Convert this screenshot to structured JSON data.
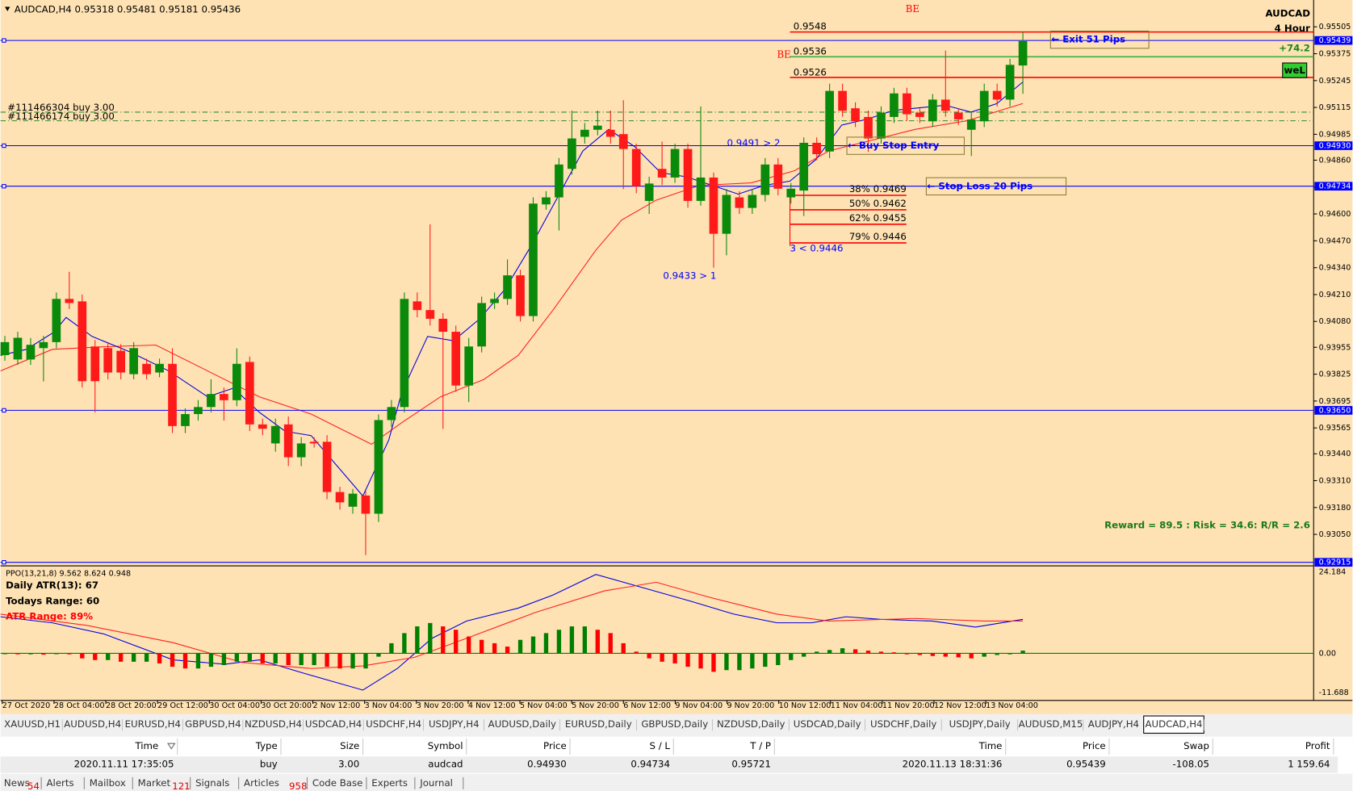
{
  "window": {
    "header": "AUDCAD,H4  0.95318 0.95481 0.95181 0.95436",
    "symbol": "AUDCAD",
    "timeframe": "4 Hour",
    "profit_pips": "+74.2",
    "button": "weL",
    "reward_risk": "Reward = 89.5 : Risk = 34.6: R/R = 2.6",
    "orders": [
      "#111466304 buy 3.00",
      "#111466174 buy 3.00"
    ],
    "annotations": [
      "BE",
      "BE",
      "0.9548",
      "0.9536",
      "0.9526",
      "0.9491 > 2",
      "0.9433 > 1",
      "3 < 0.9446",
      "← Exit 51 Pips",
      "← Buy Stop Entry",
      "← Stop Loss 20 Pips"
    ],
    "tabs": [
      "XAUUSD,H1",
      "AUDUSD,H4",
      "EURUSD,H4",
      "GBPUSD,H4",
      "NZDUSD,H4",
      "USDCAD,H4",
      "USDCHF,H4",
      "USDJPY,H4",
      "AUDUSD,Daily",
      "EURUSD,Daily",
      "GBPUSD,Daily",
      "NZDUSD,Daily",
      "USDCAD,Daily",
      "USDCHF,Daily",
      "USDJPY,Daily",
      "AUDUSD,M15",
      "AUDJPY,H4",
      "AUDCAD,H4"
    ],
    "table": {
      "headers": [
        "Time",
        "Type",
        "Size",
        "Symbol",
        "Price",
        "S / L",
        "T / P",
        "Time",
        "Price",
        "Swap",
        "Profit"
      ],
      "rows": [
        [
          "2020.11.11 17:35:05",
          "buy",
          "3.00",
          "audcad",
          "0.94930",
          "0.94734",
          "0.95721",
          "2020.11.13 18:31:36",
          "0.95439",
          "-108.05",
          "1 159.64"
        ]
      ]
    },
    "bottom_tabs": [
      {
        "label": "News",
        "badge": "54"
      },
      {
        "label": "Alerts"
      },
      {
        "label": "Mailbox"
      },
      {
        "label": "Market",
        "badge": "121"
      },
      {
        "label": "Signals"
      },
      {
        "label": "Articles",
        "badge": "958"
      },
      {
        "label": "Code Base"
      },
      {
        "label": "Experts"
      },
      {
        "label": "Journal"
      }
    ]
  },
  "chart_data": [
    {
      "type": "candlestick",
      "up_color": "#0a8a0a",
      "down_color": "#ff1a1a",
      "open": [
        0.93917,
        0.93896,
        0.93896,
        0.93951,
        0.9398,
        0.94189,
        0.94177,
        0.93959,
        0.93951,
        0.93938,
        0.93825,
        0.93875,
        0.93833,
        0.93875,
        0.93574,
        0.93632,
        0.93666,
        0.93729,
        0.93699,
        0.93884,
        0.93582,
        0.9349,
        0.93582,
        0.93423,
        0.93498,
        0.93498,
        0.93255,
        0.93184,
        0.93238,
        0.9315,
        0.93603,
        0.93666,
        0.94177,
        0.94135,
        0.94093,
        0.9403,
        0.9377,
        0.93959,
        0.94169,
        0.94189,
        0.94303,
        0.94106,
        0.94646,
        0.9468,
        0.94818,
        0.94973,
        0.95007,
        0.95007,
        0.94986,
        0.94914,
        0.94663,
        0.94818,
        0.94776,
        0.94914,
        0.94663,
        0.94776,
        0.94504,
        0.9468,
        0.94629,
        0.94692,
        0.94839,
        0.9468,
        0.94713,
        0.94944,
        0.94902,
        0.95195,
        0.95111,
        0.95069,
        0.94965,
        0.95069,
        0.95183,
        0.9509,
        0.95048,
        0.95153,
        0.9509,
        0.95007,
        0.95048,
        0.95195,
        0.95153,
        0.95318
      ],
      "high": [
        0.9401,
        0.9403,
        0.94,
        0.9401,
        0.9422,
        0.9432,
        0.9421,
        0.9399,
        0.9398,
        0.9397,
        0.9398,
        0.939,
        0.939,
        0.9395,
        0.9366,
        0.937,
        0.938,
        0.9376,
        0.9395,
        0.9391,
        0.9361,
        0.9361,
        0.9362,
        0.9352,
        0.9352,
        0.9353,
        0.9328,
        0.9327,
        0.9326,
        0.9363,
        0.937,
        0.9422,
        0.9422,
        0.9455,
        0.9412,
        0.9406,
        0.94,
        0.942,
        0.9422,
        0.9438,
        0.9433,
        0.9468,
        0.9471,
        0.9487,
        0.951,
        0.9504,
        0.951,
        0.951,
        0.9515,
        0.9494,
        0.9478,
        0.9495,
        0.9494,
        0.9494,
        0.9512,
        0.948,
        0.9472,
        0.9471,
        0.9472,
        0.9487,
        0.9487,
        0.9475,
        0.9497,
        0.9497,
        0.9523,
        0.9523,
        0.9514,
        0.951,
        0.9512,
        0.9521,
        0.9521,
        0.9511,
        0.9518,
        0.9539,
        0.9511,
        0.9509,
        0.9523,
        0.9523,
        0.9535,
        0.95481
      ],
      "low": [
        0.9389,
        0.9387,
        0.9387,
        0.9379,
        0.9395,
        0.9414,
        0.9376,
        0.9364,
        0.938,
        0.938,
        0.938,
        0.938,
        0.9381,
        0.9354,
        0.9354,
        0.936,
        0.9364,
        0.936,
        0.9367,
        0.9355,
        0.9353,
        0.9345,
        0.9338,
        0.9338,
        0.9347,
        0.9322,
        0.9317,
        0.9315,
        0.9295,
        0.9311,
        0.9357,
        0.9364,
        0.941,
        0.9406,
        0.9356,
        0.9374,
        0.9369,
        0.9393,
        0.9414,
        0.9416,
        0.9408,
        0.9408,
        0.9462,
        0.9452,
        0.9479,
        0.9494,
        0.9498,
        0.9494,
        0.9472,
        0.947,
        0.946,
        0.9474,
        0.9475,
        0.9463,
        0.9464,
        0.9434,
        0.944,
        0.946,
        0.946,
        0.9466,
        0.9469,
        0.9465,
        0.9459,
        0.9486,
        0.9487,
        0.9507,
        0.9502,
        0.949,
        0.9494,
        0.9504,
        0.9505,
        0.9504,
        0.9502,
        0.9507,
        0.9503,
        0.9488,
        0.9502,
        0.9512,
        0.9512,
        0.95181
      ],
      "close": [
        0.9398,
        0.94001,
        0.93967,
        0.9398,
        0.94189,
        0.94169,
        0.93791,
        0.93791,
        0.93833,
        0.93833,
        0.93951,
        0.93825,
        0.93875,
        0.93574,
        0.93632,
        0.93666,
        0.93729,
        0.93699,
        0.93875,
        0.93582,
        0.93561,
        0.93574,
        0.93423,
        0.9349,
        0.9349,
        0.93255,
        0.93205,
        0.93247,
        0.9315,
        0.93603,
        0.93666,
        0.94189,
        0.94135,
        0.94093,
        0.9403,
        0.9377,
        0.93959,
        0.94169,
        0.94189,
        0.94303,
        0.94106,
        0.9465,
        0.9468,
        0.94839,
        0.94965,
        0.95007,
        0.95027,
        0.94973,
        0.94914,
        0.94734,
        0.94747,
        0.94776,
        0.94914,
        0.94663,
        0.94776,
        0.94504,
        0.94692,
        0.94629,
        0.94692,
        0.94839,
        0.94722,
        0.94722,
        0.94944,
        0.94889,
        0.95195,
        0.95099,
        0.95048,
        0.94965,
        0.9509,
        0.95183,
        0.95082,
        0.95069,
        0.95153,
        0.95099,
        0.95057,
        0.95057,
        0.95195,
        0.95153,
        0.95321,
        0.95436
      ],
      "xlabels": [
        "27 Oct 2020",
        "28 Oct 04:00",
        "28 Oct 20:00",
        "29 Oct 12:00",
        "30 Oct 04:00",
        "30 Oct 20:00",
        "2 Nov 12:00",
        "3 Nov 04:00",
        "3 Nov 20:00",
        "4 Nov 12:00",
        "5 Nov 04:00",
        "5 Nov 20:00",
        "6 Nov 12:00",
        "9 Nov 04:00",
        "9 Nov 20:00",
        "10 Nov 12:00",
        "11 Nov 04:00",
        "11 Nov 20:00",
        "12 Nov 12:00",
        "13 Nov 04:00"
      ],
      "ylim": [
        0.92902,
        0.95618
      ],
      "yticks": [
        0.95505,
        0.95375,
        0.95245,
        0.95115,
        0.94985,
        {
          "value": 0.9486,
          "label": "0.94860"
        },
        0.9473,
        {
          "value": 0.946,
          "label": "0.94600"
        },
        {
          "value": 0.9447,
          "label": "0.94470"
        },
        {
          "value": 0.9434,
          "label": "0.94340"
        },
        {
          "value": 0.9421,
          "label": "0.94210"
        },
        {
          "value": 0.9408,
          "label": "0.94080"
        },
        0.93955,
        0.93825,
        0.93695,
        0.93565,
        {
          "value": 0.9344,
          "label": "0.93440"
        },
        {
          "value": 0.9331,
          "label": "0.93310"
        },
        {
          "value": 0.9318,
          "label": "0.93180"
        },
        {
          "value": 0.9305,
          "label": "0.93050"
        }
      ],
      "price_lines": [
        {
          "value": 0.95439,
          "label": "0.95439"
        },
        {
          "value": 0.9493,
          "label": "0.94930"
        },
        {
          "value": 0.94734,
          "label": "0.94734"
        },
        {
          "value": 0.9365,
          "label": "0.93650"
        },
        {
          "value": 0.92915,
          "label": "0.92915"
        }
      ],
      "levels": [
        {
          "value": 0.9548,
          "color": "#ff0000"
        },
        {
          "value": 0.9536,
          "color": "#3cb043"
        },
        {
          "value": 0.9526,
          "color": "#ff0000"
        }
      ],
      "fib": [
        {
          "value": 0.9469,
          "label": "38% 0.9469"
        },
        {
          "value": 0.9462,
          "label": "50% 0.9462"
        },
        {
          "value": 0.9455,
          "label": "62% 0.9455"
        },
        {
          "value": 0.9446,
          "label": "79% 0.9446"
        }
      ]
    },
    {
      "type": "bar",
      "title": "PPO(13,21,8) 9.562 8.624 0.948",
      "notes": [
        "Daily ATR(13): 67",
        "Todays Range: 60",
        "ATR Range: 89%"
      ],
      "values": [
        -0.2,
        -0.3,
        -0.3,
        -0.4,
        -0.2,
        -0.3,
        -1.5,
        -2,
        -2,
        -2.5,
        -2.5,
        -2.5,
        -3,
        -4,
        -4.5,
        -4.5,
        -4,
        -3.5,
        -2.5,
        -2.5,
        -3,
        -3,
        -3.5,
        -3.5,
        -3.5,
        -4,
        -4.5,
        -4.5,
        -4.5,
        -1,
        3,
        6,
        8,
        9,
        8,
        7,
        5,
        4,
        3,
        2,
        4,
        5,
        6,
        7,
        8,
        8,
        7,
        6,
        3,
        0.5,
        -1.5,
        -2.5,
        -3,
        -4,
        -4.5,
        -5.5,
        -5,
        -5,
        -4.5,
        -4,
        -3.5,
        -2,
        -1,
        0.5,
        1,
        1.5,
        1.2,
        0.8,
        0.5,
        0.3,
        -0.3,
        -0.5,
        -0.8,
        -1,
        -1.2,
        -1.5,
        -1,
        -0.5,
        -0.3,
        0.8
      ],
      "ylim": [
        -11.688,
        24.184
      ],
      "yticks": [
        24.184,
        {
          "value": 0,
          "label": "0.00"
        },
        -11.688
      ]
    }
  ]
}
